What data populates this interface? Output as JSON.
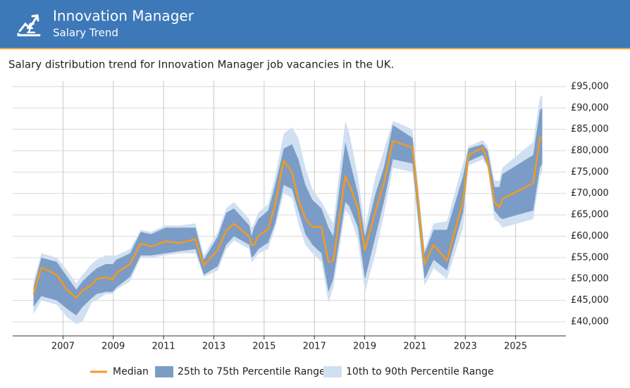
{
  "header": {
    "title": "Innovation Manager",
    "subtitle": "Salary Trend"
  },
  "description": "Salary distribution trend for Innovation Manager job vacancies in the UK.",
  "chart_data": {
    "type": "band-line",
    "x": [
      2005.83,
      2006.14,
      2006.75,
      2007.17,
      2007.53,
      2007.78,
      2008.14,
      2008.34,
      2008.7,
      2008.98,
      2009.12,
      2009.67,
      2010.09,
      2010.51,
      2011.07,
      2011.63,
      2012.27,
      2012.6,
      2013.16,
      2013.49,
      2013.8,
      2014.41,
      2014.5,
      2014.6,
      2014.77,
      2015.16,
      2015.44,
      2015.78,
      2016.11,
      2016.36,
      2016.64,
      2016.92,
      2017.28,
      2017.56,
      2017.75,
      2018.23,
      2018.39,
      2018.73,
      2019.01,
      2019.43,
      2019.76,
      2020.12,
      2020.9,
      2021.38,
      2021.74,
      2022.27,
      2022.91,
      2023.13,
      2023.69,
      2023.89,
      2024.16,
      2024.36,
      2024.47,
      2025.7,
      2025.97,
      2026.06
    ],
    "series": [
      {
        "name": "Median",
        "color": "#f39a1e",
        "values": [
          46400,
          52700,
          51000,
          47400,
          45600,
          47300,
          48600,
          50000,
          50400,
          49900,
          51400,
          53500,
          58300,
          57600,
          58800,
          58400,
          59300,
          53200,
          56800,
          61400,
          62900,
          59900,
          58000,
          58000,
          60100,
          61700,
          67500,
          77700,
          74900,
          68700,
          64200,
          62200,
          62200,
          54000,
          54300,
          74100,
          72100,
          66700,
          56800,
          65900,
          72400,
          82300,
          80700,
          53500,
          58000,
          54300,
          68300,
          79000,
          80700,
          77400,
          68000,
          66700,
          68700,
          72400,
          83100,
          83100
        ]
      },
      {
        "name": "25th to 75th Percentile Range",
        "color": "#7b9cc6",
        "low": [
          43500,
          46000,
          45000,
          43000,
          41500,
          43500,
          45500,
          46500,
          47000,
          47000,
          48000,
          50500,
          55500,
          55500,
          56000,
          56500,
          57000,
          51000,
          53000,
          58000,
          60000,
          58000,
          55000,
          55500,
          57000,
          58500,
          63000,
          72000,
          71000,
          66000,
          60500,
          58000,
          56000,
          47000,
          50000,
          68000,
          67000,
          62000,
          50000,
          60000,
          68000,
          78000,
          77000,
          50000,
          54500,
          52000,
          65500,
          77500,
          79000,
          76500,
          66000,
          64500,
          64000,
          66000,
          76000,
          77000
        ],
        "high": [
          48000,
          55000,
          54000,
          50500,
          47500,
          49500,
          51500,
          52500,
          53500,
          53500,
          54500,
          56000,
          61000,
          60500,
          62000,
          62000,
          62000,
          54500,
          60000,
          65500,
          66500,
          62500,
          60000,
          62000,
          64000,
          66000,
          72000,
          80500,
          81500,
          78000,
          72000,
          68500,
          66500,
          62000,
          60000,
          82000,
          78000,
          70000,
          60000,
          70000,
          76000,
          86000,
          83000,
          56000,
          61500,
          61500,
          74000,
          80500,
          81500,
          80000,
          71500,
          71500,
          74500,
          79000,
          89500,
          90000
        ]
      },
      {
        "name": "10th to 90th Percentile Range",
        "color": "#d0e0f1",
        "low": [
          41800,
          45000,
          44000,
          41000,
          39500,
          40000,
          44500,
          45000,
          46500,
          46500,
          47500,
          49500,
          55000,
          55000,
          55500,
          56000,
          56000,
          50500,
          52000,
          57000,
          59000,
          57000,
          54000,
          54500,
          56000,
          57000,
          62000,
          70000,
          69000,
          63000,
          58000,
          56000,
          54000,
          44500,
          48000,
          66000,
          65000,
          59000,
          47000,
          56000,
          65000,
          76000,
          75000,
          48500,
          52500,
          50000,
          62000,
          76500,
          78000,
          76000,
          64000,
          63000,
          62000,
          64000,
          74000,
          75000
        ],
        "high": [
          49500,
          56000,
          55000,
          52000,
          49000,
          51000,
          53500,
          54500,
          55500,
          55500,
          55500,
          57000,
          61500,
          61000,
          62500,
          62500,
          63000,
          55500,
          61000,
          66500,
          68000,
          64000,
          62000,
          63000,
          65500,
          67500,
          74000,
          84000,
          85500,
          83000,
          76000,
          71000,
          68000,
          65000,
          63000,
          87000,
          84000,
          74000,
          62000,
          74000,
          80000,
          87000,
          85000,
          57000,
          63000,
          63500,
          77000,
          81000,
          82500,
          81000,
          73000,
          73000,
          76000,
          82000,
          92500,
          93000
        ]
      }
    ],
    "xlim": [
      2005,
      2027
    ],
    "xticks": [
      2007,
      2009,
      2011,
      2013,
      2015,
      2017,
      2019,
      2021,
      2023,
      2025
    ],
    "ylim": [
      36700,
      96300
    ],
    "yticks": [
      {
        "value": 40000,
        "label": "£40,000"
      },
      {
        "value": 45000,
        "label": "£45,000"
      },
      {
        "value": 50000,
        "label": "£50,000"
      },
      {
        "value": 55000,
        "label": "£55,000"
      },
      {
        "value": 60000,
        "label": "£60,000"
      },
      {
        "value": 65000,
        "label": "£65,000"
      },
      {
        "value": 70000,
        "label": "£70,000"
      },
      {
        "value": 75000,
        "label": "£75,000"
      },
      {
        "value": 80000,
        "label": "£80,000"
      },
      {
        "value": 85000,
        "label": "£85,000"
      },
      {
        "value": 90000,
        "label": "£90,000"
      },
      {
        "value": 95000,
        "label": "£95,000"
      }
    ],
    "grid": true,
    "legend": "bottom"
  }
}
